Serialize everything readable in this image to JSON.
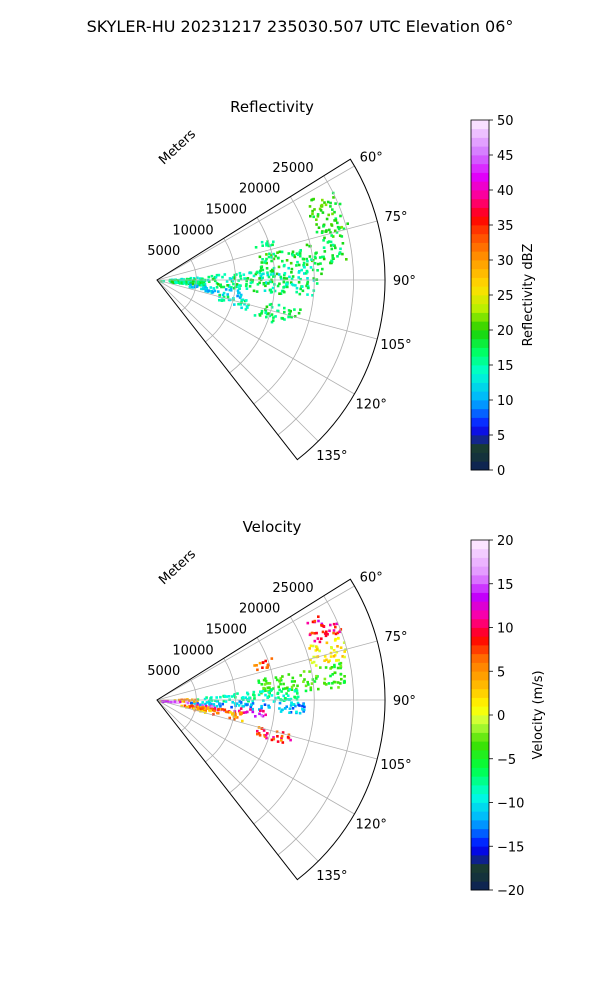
{
  "figure_title": "SKYLER-HU  20231217  235030.507 UTC Elevation 06°",
  "colors": {
    "grid": "#b0b0b0",
    "axis": "#000000"
  },
  "chart_data": [
    {
      "type": "polar-sector",
      "title": "Reflectivity",
      "radial_label": "Meters",
      "radial_ticks": [
        5000,
        10000,
        15000,
        20000,
        25000
      ],
      "radial_tick_labels": [
        "5000",
        "10000",
        "15000",
        "20000",
        "25000"
      ],
      "rlim": [
        0,
        29000
      ],
      "theta_range_deg": [
        58,
        142
      ],
      "theta_ticks_deg": [
        60,
        75,
        90,
        105,
        120,
        135
      ],
      "theta_tick_labels": [
        "60°",
        "75°",
        "90°",
        "105°",
        "120°",
        "135°"
      ],
      "colorbar": {
        "label": "Reflectivity dBZ",
        "range": [
          0,
          50
        ],
        "ticks": [
          0,
          5,
          10,
          15,
          20,
          25,
          30,
          35,
          40,
          45,
          50
        ],
        "tick_labels": [
          "0",
          "5",
          "10",
          "15",
          "20",
          "25",
          "30",
          "35",
          "40",
          "45",
          "50"
        ],
        "levels": 40,
        "stops": [
          [
            0,
            "#0b1f5a"
          ],
          [
            0.06,
            "#1a3d2a"
          ],
          [
            0.12,
            "#0a0aff"
          ],
          [
            0.2,
            "#00b0ff"
          ],
          [
            0.28,
            "#00ffd0"
          ],
          [
            0.34,
            "#00ff60"
          ],
          [
            0.4,
            "#20d000"
          ],
          [
            0.46,
            "#b8f000"
          ],
          [
            0.52,
            "#ffe000"
          ],
          [
            0.6,
            "#ff9a00"
          ],
          [
            0.68,
            "#ff4000"
          ],
          [
            0.72,
            "#ff0000"
          ],
          [
            0.78,
            "#ff0090"
          ],
          [
            0.84,
            "#e000ff"
          ],
          [
            0.9,
            "#d070ff"
          ],
          [
            1,
            "#fff0ff"
          ]
        ]
      },
      "echo_regions": [
        {
          "az": [
            62,
            76
          ],
          "r": [
            21000,
            25200
          ],
          "v": [
            17,
            22
          ]
        },
        {
          "az": [
            76,
            84
          ],
          "r": [
            13000,
            24500
          ],
          "v": [
            15,
            21
          ]
        },
        {
          "az": [
            84,
            91
          ],
          "r": [
            1500,
            21000
          ],
          "v": [
            12,
            20
          ]
        },
        {
          "az": [
            86,
            96
          ],
          "r": [
            300,
            6000
          ],
          "v": [
            14,
            20
          ]
        },
        {
          "az": [
            91,
            96
          ],
          "r": [
            3000,
            20000
          ],
          "v": [
            13,
            20
          ]
        },
        {
          "az": [
            69,
            73
          ],
          "r": [
            13000,
            15500
          ],
          "v": [
            14,
            18
          ]
        },
        {
          "az": [
            96,
            102
          ],
          "r": [
            4000,
            11000
          ],
          "v": [
            9,
            14
          ]
        },
        {
          "az": [
            102,
            108
          ],
          "r": [
            8000,
            12000
          ],
          "v": [
            12,
            18
          ]
        },
        {
          "az": [
            101,
            107
          ],
          "r": [
            14000,
            18500
          ],
          "v": [
            15,
            20
          ]
        },
        {
          "az": [
            106,
            110
          ],
          "r": [
            13000,
            15500
          ],
          "v": [
            15,
            19
          ]
        }
      ]
    },
    {
      "type": "polar-sector",
      "title": "Velocity",
      "radial_label": "Meters",
      "radial_ticks": [
        5000,
        10000,
        15000,
        20000,
        25000
      ],
      "radial_tick_labels": [
        "5000",
        "10000",
        "15000",
        "20000",
        "25000"
      ],
      "rlim": [
        0,
        29000
      ],
      "theta_range_deg": [
        58,
        142
      ],
      "theta_ticks_deg": [
        60,
        75,
        90,
        105,
        120,
        135
      ],
      "theta_tick_labels": [
        "60°",
        "75°",
        "90°",
        "105°",
        "120°",
        "135°"
      ],
      "colorbar": {
        "label": "Velocity (m/s)",
        "range": [
          -20,
          20
        ],
        "ticks": [
          -20,
          -15,
          -10,
          -5,
          0,
          5,
          10,
          15,
          20
        ],
        "tick_labels": [
          "−20",
          "−15",
          "−10",
          "−5",
          "0",
          "5",
          "10",
          "15",
          "20"
        ],
        "levels": 40,
        "stops": [
          [
            0,
            "#0b1f5a"
          ],
          [
            0.06,
            "#1a3d2a"
          ],
          [
            0.12,
            "#0000ff"
          ],
          [
            0.2,
            "#00b0ff"
          ],
          [
            0.27,
            "#00ffe0"
          ],
          [
            0.35,
            "#00ff40"
          ],
          [
            0.42,
            "#40e000"
          ],
          [
            0.48,
            "#c8ff40"
          ],
          [
            0.52,
            "#ffff00"
          ],
          [
            0.58,
            "#ffc000"
          ],
          [
            0.66,
            "#ff7000"
          ],
          [
            0.72,
            "#ff0000"
          ],
          [
            0.78,
            "#ff00a0"
          ],
          [
            0.84,
            "#c000ff"
          ],
          [
            0.9,
            "#e090ff"
          ],
          [
            1,
            "#fff0ff"
          ]
        ]
      },
      "echo_regions": [
        {
          "az": [
            62,
            70
          ],
          "r": [
            21000,
            25000
          ],
          "v": [
            6,
            13
          ]
        },
        {
          "az": [
            70,
            78
          ],
          "r": [
            20000,
            25000
          ],
          "v": [
            -1,
            4
          ]
        },
        {
          "az": [
            78,
            86
          ],
          "r": [
            13000,
            24000
          ],
          "v": [
            -6,
            -2
          ]
        },
        {
          "az": [
            84,
            90
          ],
          "r": [
            5000,
            18000
          ],
          "v": [
            -10,
            -6
          ]
        },
        {
          "az": [
            90,
            95
          ],
          "r": [
            4000,
            19000
          ],
          "v": [
            -14,
            -9
          ]
        },
        {
          "az": [
            86,
            91
          ],
          "r": [
            300,
            5000
          ],
          "v": [
            2,
            8
          ]
        },
        {
          "az": [
            91,
            95
          ],
          "r": [
            300,
            4000
          ],
          "v": [
            12,
            18
          ]
        },
        {
          "az": [
            95,
            99
          ],
          "r": [
            4000,
            14000
          ],
          "v": [
            10,
            16
          ]
        },
        {
          "az": [
            97,
            104
          ],
          "r": [
            3000,
            11000
          ],
          "v": [
            1,
            8
          ]
        },
        {
          "az": [
            104,
            109
          ],
          "r": [
            13000,
            18000
          ],
          "v": [
            4,
            12
          ]
        },
        {
          "az": [
            69,
            73
          ],
          "r": [
            12500,
            15500
          ],
          "v": [
            3,
            9
          ]
        }
      ]
    }
  ]
}
